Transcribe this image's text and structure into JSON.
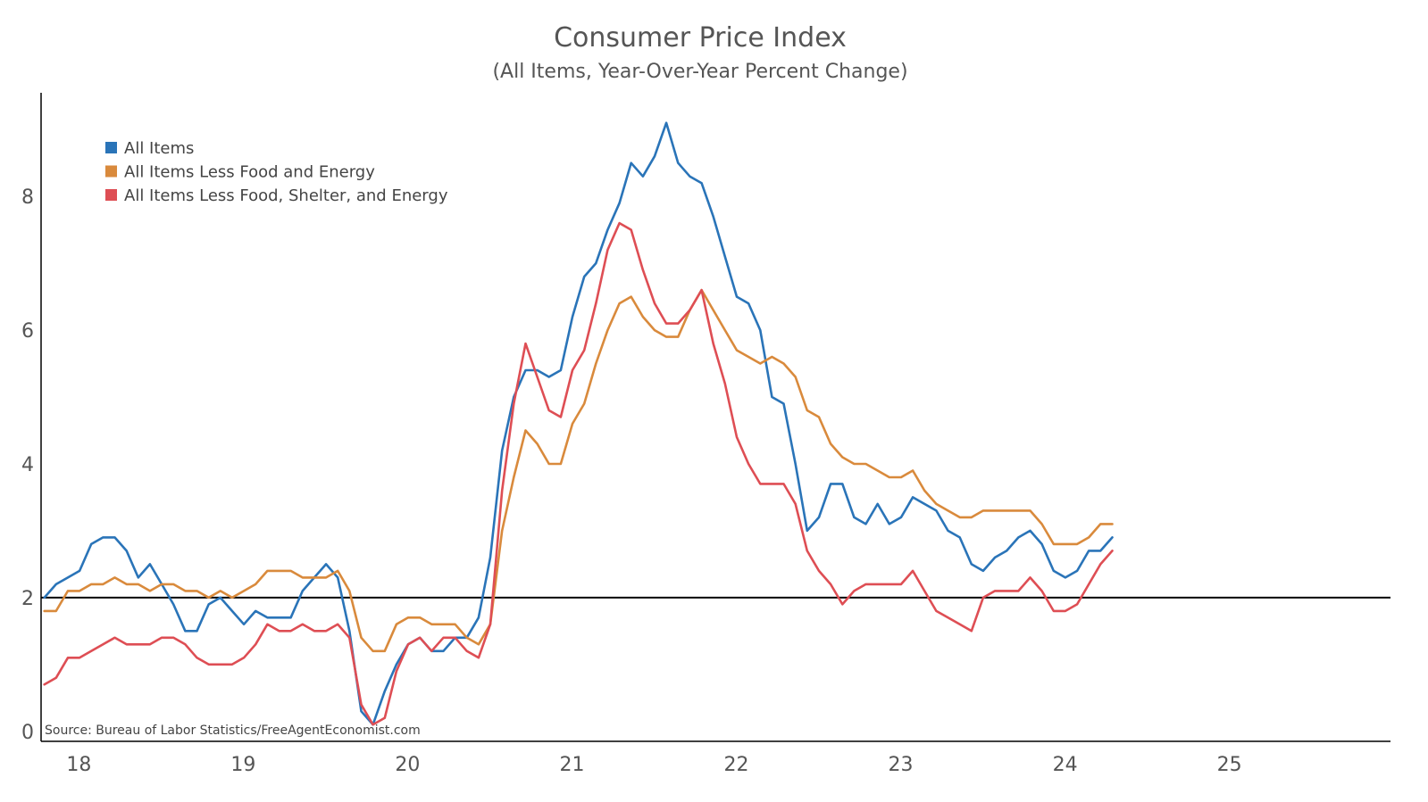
{
  "chart_data": {
    "type": "line",
    "title": "Consumer Price Index",
    "subtitle": "(All Items, Year-Over-Year Percent Change)",
    "source": "Source: Bureau of Labor Statistics/FreeAgentEconomist.com",
    "xlabel": "",
    "ylabel": "",
    "xlim": [
      2017.77,
      2025.98
    ],
    "ylim": [
      -0.15,
      9.55
    ],
    "x_ticks": [
      2018,
      2019,
      2020,
      2021,
      2022,
      2023,
      2024,
      2025
    ],
    "x_tick_labels": [
      "18",
      "19",
      "20",
      "21",
      "22",
      "23",
      "24",
      "25"
    ],
    "y_ticks": [
      0,
      2,
      4,
      6,
      8
    ],
    "y_tick_labels": [
      "0",
      "2",
      "4",
      "6",
      "8"
    ],
    "reference_line": 2,
    "x_start": 2017.79,
    "x_step": 0.0714,
    "legend_position": "top-left",
    "series": [
      {
        "name": "All Items",
        "color": "#2a74b8",
        "values": [
          2.0,
          2.2,
          2.3,
          2.4,
          2.8,
          2.9,
          2.9,
          2.7,
          2.3,
          2.5,
          2.2,
          1.9,
          1.5,
          1.5,
          1.9,
          2.0,
          1.8,
          1.6,
          1.8,
          1.7,
          1.7,
          1.7,
          2.1,
          2.3,
          2.5,
          2.3,
          1.5,
          0.3,
          0.1,
          0.6,
          1.0,
          1.3,
          1.4,
          1.2,
          1.2,
          1.4,
          1.4,
          1.7,
          2.6,
          4.2,
          5.0,
          5.4,
          5.4,
          5.3,
          5.4,
          6.2,
          6.8,
          7.0,
          7.5,
          7.9,
          8.5,
          8.3,
          8.6,
          9.1,
          8.5,
          8.3,
          8.2,
          7.7,
          7.1,
          6.5,
          6.4,
          6.0,
          5.0,
          4.9,
          4.0,
          3.0,
          3.2,
          3.7,
          3.7,
          3.2,
          3.1,
          3.4,
          3.1,
          3.2,
          3.5,
          3.4,
          3.3,
          3.0,
          2.9,
          2.5,
          2.4,
          2.6,
          2.7,
          2.9,
          3.0,
          2.8,
          2.4,
          2.3,
          2.4,
          2.7,
          2.7,
          2.9
        ]
      },
      {
        "name": "All Items Less Food and Energy",
        "color": "#d98a3c",
        "values": [
          1.8,
          1.8,
          2.1,
          2.1,
          2.2,
          2.2,
          2.3,
          2.2,
          2.2,
          2.1,
          2.2,
          2.2,
          2.1,
          2.1,
          2.0,
          2.1,
          2.0,
          2.1,
          2.2,
          2.4,
          2.4,
          2.4,
          2.3,
          2.3,
          2.3,
          2.4,
          2.1,
          1.4,
          1.2,
          1.2,
          1.6,
          1.7,
          1.7,
          1.6,
          1.6,
          1.6,
          1.4,
          1.3,
          1.6,
          3.0,
          3.8,
          4.5,
          4.3,
          4.0,
          4.0,
          4.6,
          4.9,
          5.5,
          6.0,
          6.4,
          6.5,
          6.2,
          6.0,
          5.9,
          5.9,
          6.3,
          6.6,
          6.3,
          6.0,
          5.7,
          5.6,
          5.5,
          5.6,
          5.5,
          5.3,
          4.8,
          4.7,
          4.3,
          4.1,
          4.0,
          4.0,
          3.9,
          3.8,
          3.8,
          3.9,
          3.6,
          3.4,
          3.3,
          3.2,
          3.2,
          3.3,
          3.3,
          3.3,
          3.3,
          3.3,
          3.1,
          2.8,
          2.8,
          2.8,
          2.9,
          3.1,
          3.1
        ]
      },
      {
        "name": "All Items Less Food, Shelter, and Energy",
        "color": "#de4e54",
        "values": [
          0.7,
          0.8,
          1.1,
          1.1,
          1.2,
          1.3,
          1.4,
          1.3,
          1.3,
          1.3,
          1.4,
          1.4,
          1.3,
          1.1,
          1.0,
          1.0,
          1.0,
          1.1,
          1.3,
          1.6,
          1.5,
          1.5,
          1.6,
          1.5,
          1.5,
          1.6,
          1.4,
          0.4,
          0.1,
          0.2,
          0.9,
          1.3,
          1.4,
          1.2,
          1.4,
          1.4,
          1.2,
          1.1,
          1.6,
          3.6,
          4.9,
          5.8,
          5.3,
          4.8,
          4.7,
          5.4,
          5.7,
          6.4,
          7.2,
          7.6,
          7.5,
          6.9,
          6.4,
          6.1,
          6.1,
          6.3,
          6.6,
          5.8,
          5.2,
          4.4,
          4.0,
          3.7,
          3.7,
          3.7,
          3.4,
          2.7,
          2.4,
          2.2,
          1.9,
          2.1,
          2.2,
          2.2,
          2.2,
          2.2,
          2.4,
          2.1,
          1.8,
          1.7,
          1.6,
          1.5,
          2.0,
          2.1,
          2.1,
          2.1,
          2.3,
          2.1,
          1.8,
          1.8,
          1.9,
          2.2,
          2.5,
          2.7
        ]
      }
    ]
  }
}
